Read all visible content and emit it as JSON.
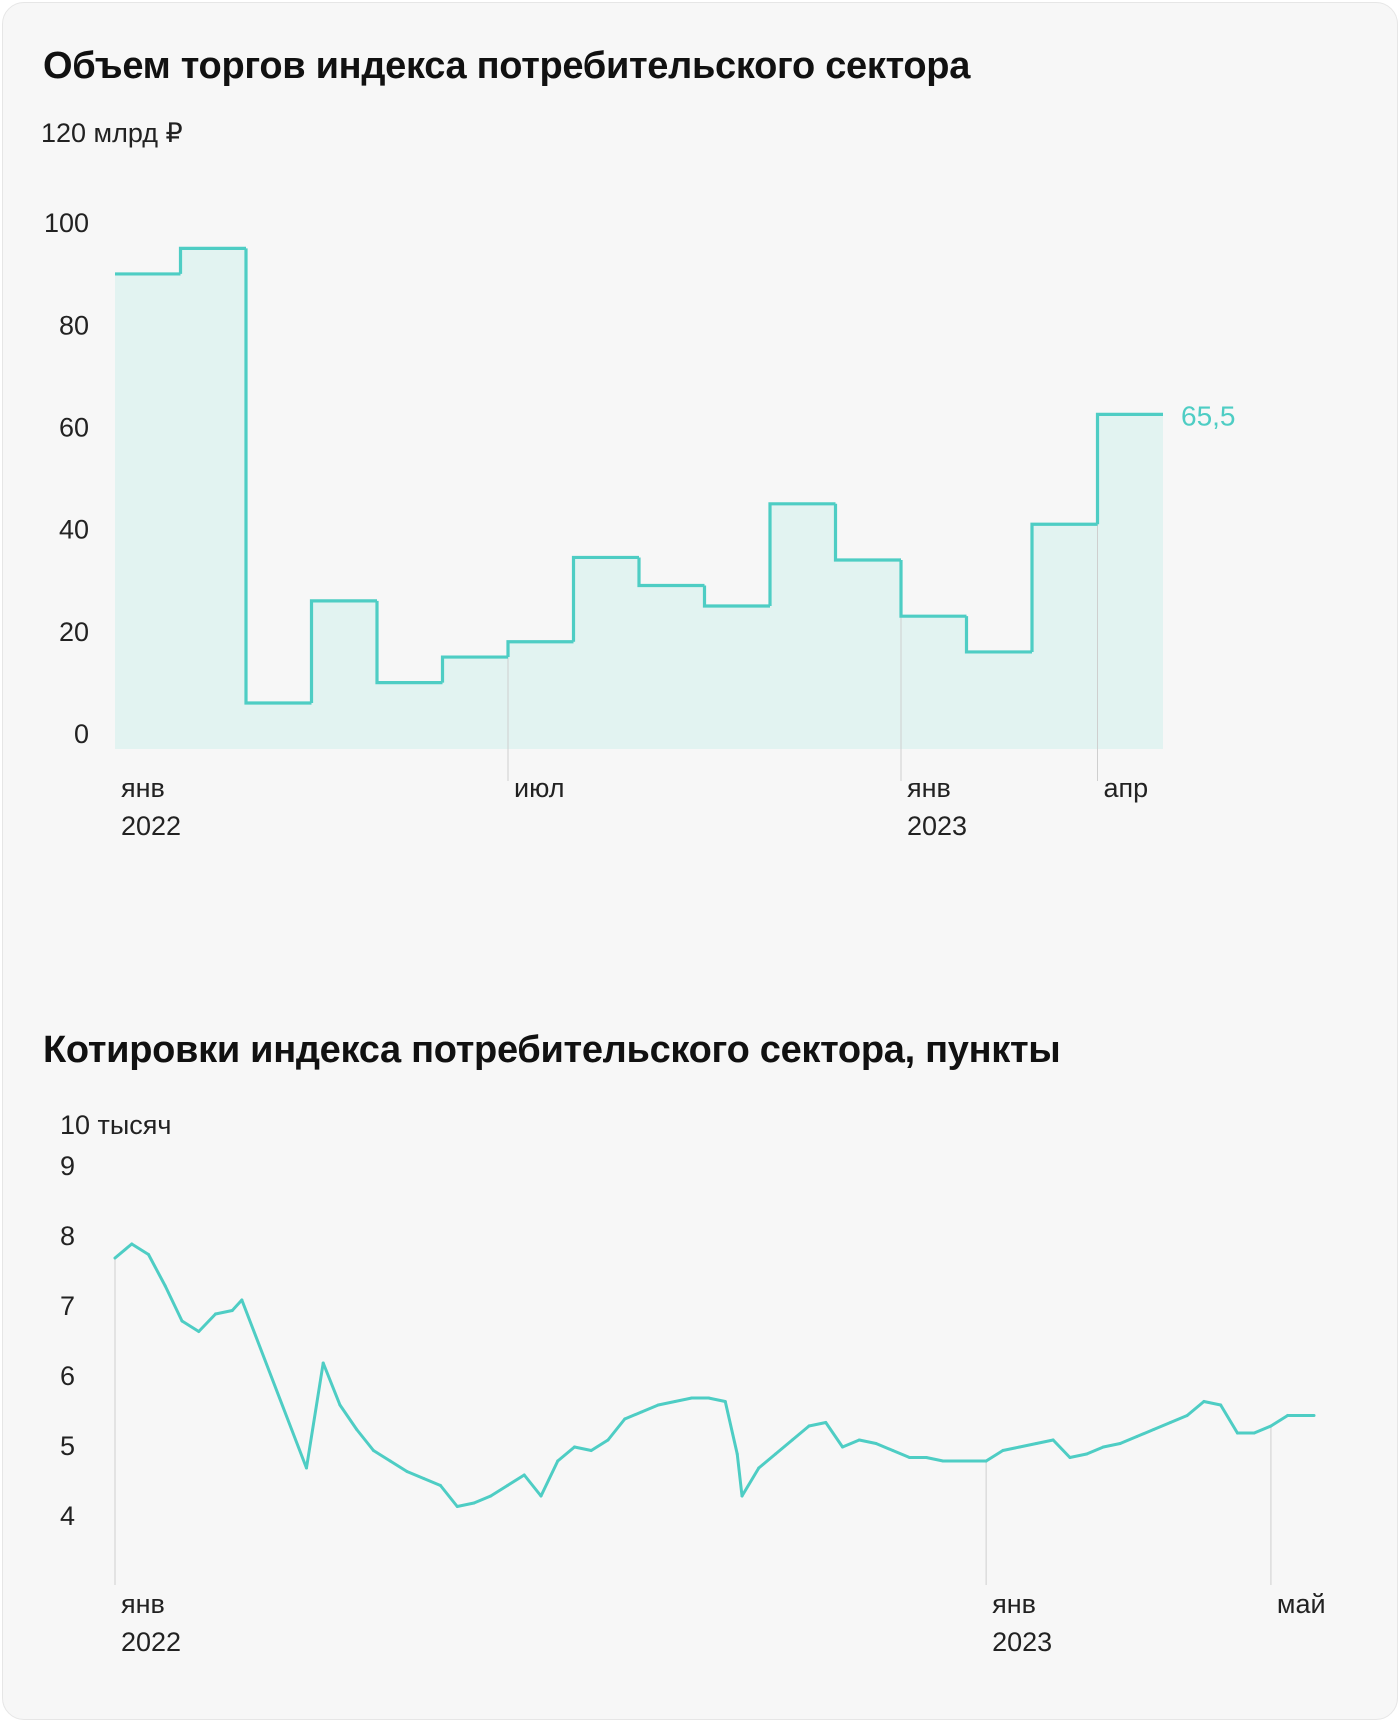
{
  "colors": {
    "line": "#4ecdc4",
    "fill": "#e2f3f1",
    "background": "#f7f7f7",
    "gridline": "#cfcfcf",
    "text": "#222222"
  },
  "chart_data": [
    {
      "type": "area",
      "title": "Объем торгов индекса потребительского сектора",
      "unit_label": "120 млрд ₽",
      "ylim": [
        0,
        120
      ],
      "y_ticks": [
        0,
        20,
        40,
        60,
        80,
        100
      ],
      "x": [
        "2022-01",
        "2022-02",
        "2022-03",
        "2022-04",
        "2022-05",
        "2022-06",
        "2022-07",
        "2022-08",
        "2022-09",
        "2022-10",
        "2022-11",
        "2022-12",
        "2023-01",
        "2023-02",
        "2023-03",
        "2023-04"
      ],
      "values": [
        93,
        98,
        9,
        29,
        13,
        18,
        21,
        37.5,
        32,
        28,
        48,
        37,
        26,
        19,
        44,
        65.5
      ],
      "last_value_label": "65,5",
      "x_tick_labels": [
        {
          "at": "2022-01",
          "month": "янв",
          "year": "2022"
        },
        {
          "at": "2022-07",
          "month": "июл",
          "year": ""
        },
        {
          "at": "2023-01",
          "month": "янв",
          "year": "2023"
        },
        {
          "at": "2023-04",
          "month": "апр",
          "year": ""
        }
      ],
      "grid": false
    },
    {
      "type": "line",
      "title": "Котировки индекса потребительского сектора, пункты",
      "unit_label": "10 тысяч",
      "ylim": [
        4,
        10
      ],
      "y_ticks": [
        4,
        5,
        6,
        7,
        8,
        9
      ],
      "x_range": [
        "2022-01-03",
        "2023-05-19"
      ],
      "x": [
        "2022-01-03",
        "2022-01-10",
        "2022-01-17",
        "2022-01-24",
        "2022-01-31",
        "2022-02-07",
        "2022-02-14",
        "2022-02-21",
        "2022-02-25",
        "2022-03-24",
        "2022-03-31",
        "2022-04-07",
        "2022-04-14",
        "2022-04-21",
        "2022-04-28",
        "2022-05-05",
        "2022-05-12",
        "2022-05-19",
        "2022-05-26",
        "2022-06-02",
        "2022-06-09",
        "2022-06-16",
        "2022-06-23",
        "2022-06-30",
        "2022-07-07",
        "2022-07-14",
        "2022-07-21",
        "2022-07-28",
        "2022-08-04",
        "2022-08-11",
        "2022-08-18",
        "2022-08-25",
        "2022-09-01",
        "2022-09-08",
        "2022-09-15",
        "2022-09-20",
        "2022-09-22",
        "2022-09-29",
        "2022-10-06",
        "2022-10-13",
        "2022-10-20",
        "2022-10-27",
        "2022-11-03",
        "2022-11-10",
        "2022-11-17",
        "2022-11-24",
        "2022-12-01",
        "2022-12-08",
        "2022-12-15",
        "2022-12-22",
        "2023-01-02",
        "2023-01-09",
        "2023-01-16",
        "2023-01-23",
        "2023-01-30",
        "2023-02-06",
        "2023-02-13",
        "2023-02-20",
        "2023-02-27",
        "2023-03-06",
        "2023-03-13",
        "2023-03-20",
        "2023-03-27",
        "2023-04-03",
        "2023-04-10",
        "2023-04-17",
        "2023-04-24",
        "2023-05-01",
        "2023-05-08",
        "2023-05-15",
        "2023-05-19"
      ],
      "values": [
        8.1,
        8.3,
        8.15,
        7.7,
        7.2,
        7.05,
        7.3,
        7.35,
        7.5,
        5.1,
        6.6,
        6.0,
        5.65,
        5.35,
        5.2,
        5.05,
        4.95,
        4.85,
        4.55,
        4.6,
        4.7,
        4.85,
        5.0,
        4.7,
        5.2,
        5.4,
        5.35,
        5.5,
        5.8,
        5.9,
        6.0,
        6.05,
        6.1,
        6.1,
        6.05,
        5.3,
        4.7,
        5.1,
        5.3,
        5.5,
        5.7,
        5.75,
        5.4,
        5.5,
        5.45,
        5.35,
        5.25,
        5.25,
        5.2,
        5.2,
        5.2,
        5.35,
        5.4,
        5.45,
        5.5,
        5.25,
        5.3,
        5.4,
        5.45,
        5.55,
        5.65,
        5.75,
        5.85,
        6.05,
        6.0,
        5.6,
        5.6,
        5.7,
        5.85,
        5.85,
        5.85
      ],
      "x_tick_labels": [
        {
          "at": "2022-01-03",
          "month": "янв",
          "year": "2022"
        },
        {
          "at": "2023-01-02",
          "month": "янв",
          "year": "2023"
        },
        {
          "at": "2023-05-01",
          "month": "май",
          "year": ""
        }
      ],
      "grid": false
    }
  ]
}
